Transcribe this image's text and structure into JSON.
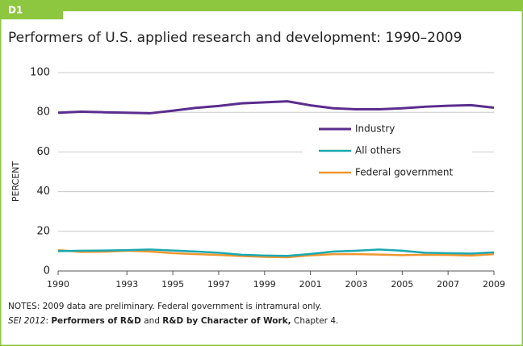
{
  "header": {
    "tab": "D1"
  },
  "chart_data": {
    "type": "line",
    "title": "Performers of U.S. applied research and development: 1990–2009",
    "y_label": "PERCENT",
    "x": [
      1990,
      1991,
      1992,
      1993,
      1994,
      1995,
      1996,
      1997,
      1998,
      1999,
      2000,
      2001,
      2002,
      2003,
      2004,
      2005,
      2006,
      2007,
      2008,
      2009
    ],
    "xlim": [
      1990,
      2009
    ],
    "xticks": [
      1990,
      1993,
      1995,
      1997,
      1999,
      2001,
      2003,
      2005,
      2007,
      2009
    ],
    "ylim": [
      0,
      100
    ],
    "yticks": [
      0,
      20,
      40,
      60,
      80,
      100
    ],
    "grid": true,
    "legend": "right",
    "series": [
      {
        "name": "Industry",
        "color": "#5b2d8e",
        "values": [
          79.8,
          80.3,
          80,
          79.8,
          79.5,
          80.8,
          82.2,
          83.2,
          84.5,
          85,
          85.5,
          83.5,
          82,
          81.5,
          81.5,
          82,
          82.8,
          83.3,
          83.6,
          82.3
        ]
      },
      {
        "name": "All others",
        "color": "#1aa9b0",
        "values": [
          10,
          10.2,
          10.3,
          10.5,
          10.8,
          10.3,
          9.8,
          9.2,
          8.2,
          7.8,
          7.6,
          8.6,
          9.8,
          10.2,
          10.8,
          10.2,
          9.2,
          9,
          8.8,
          9.4
        ]
      },
      {
        "name": "Federal government",
        "color": "#f0962e",
        "values": [
          10.5,
          9.6,
          9.7,
          10.2,
          9.8,
          9,
          8.5,
          8.1,
          7.5,
          7.1,
          6.9,
          7.9,
          8.5,
          8.5,
          8.3,
          8,
          8.2,
          8.1,
          7.8,
          8.5
        ]
      }
    ]
  },
  "notes": "NOTES: 2009 data are preliminary. Federal government is intramural only.",
  "source": [
    "SEI 2012",
    ": ",
    "Performers of R&D",
    " and ",
    "R&D by Character of Work,",
    " Chapter 4."
  ]
}
